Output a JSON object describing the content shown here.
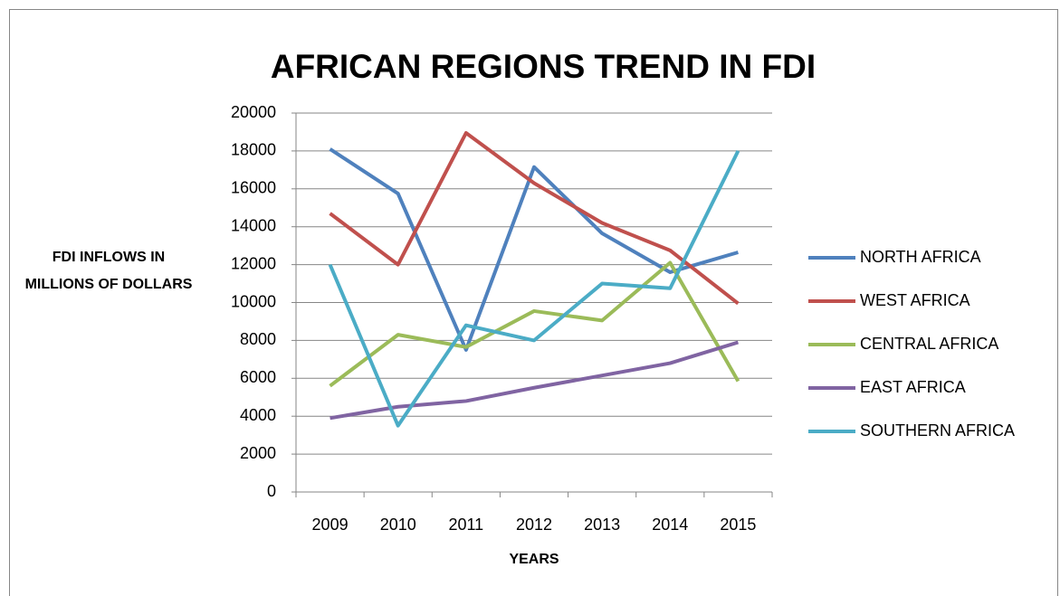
{
  "chart_data": {
    "type": "line",
    "title": "AFRICAN REGIONS TREND IN FDI",
    "x_label": "YEARS",
    "y_label": "FDI INFLOWS IN MILLIONS OF DOLLARS",
    "categories": [
      "2009",
      "2010",
      "2011",
      "2012",
      "2013",
      "2014",
      "2015"
    ],
    "series": [
      {
        "name": "NORTH AFRICA",
        "color": "#4f81bd",
        "values": [
          18100,
          15750,
          7500,
          17150,
          13650,
          11600,
          12650
        ]
      },
      {
        "name": "WEST AFRICA",
        "color": "#c0504d",
        "values": [
          14700,
          12000,
          18950,
          16300,
          14200,
          12750,
          9950
        ]
      },
      {
        "name": "CENTRAL AFRICA",
        "color": "#9bbb59",
        "values": [
          5600,
          8300,
          7650,
          9550,
          9050,
          12100,
          5850
        ]
      },
      {
        "name": "EAST AFRICA",
        "color": "#8064a2",
        "values": [
          3900,
          4500,
          4800,
          5500,
          6150,
          6800,
          7900
        ]
      },
      {
        "name": "SOUTHERN AFRICA",
        "color": "#4bacc6",
        "values": [
          12000,
          3500,
          8800,
          8000,
          11000,
          10750,
          18000
        ]
      }
    ],
    "ylim": [
      0,
      20000
    ],
    "yticks": [
      0,
      2000,
      4000,
      6000,
      8000,
      10000,
      12000,
      14000,
      16000,
      18000,
      20000
    ],
    "grid": true,
    "legend": "right"
  }
}
